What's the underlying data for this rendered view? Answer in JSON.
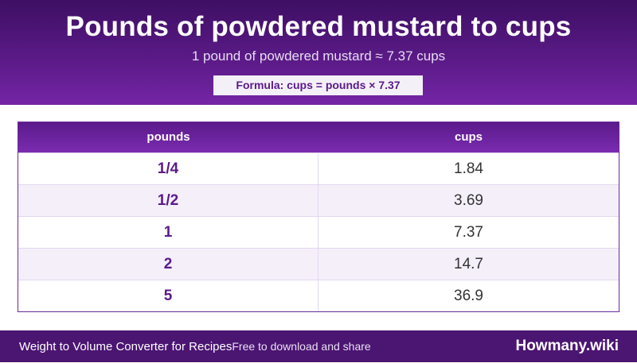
{
  "header": {
    "title": "Pounds of powdered mustard to cups",
    "subtitle": "1 pound of powdered mustard ≈ 7.37 cups",
    "formula": "Formula: cups = pounds × 7.37"
  },
  "table": {
    "columns": [
      "pounds",
      "cups"
    ],
    "rows": [
      {
        "pounds": "1/4",
        "cups": "1.84"
      },
      {
        "pounds": "1/2",
        "cups": "3.69"
      },
      {
        "pounds": "1",
        "cups": "7.37"
      },
      {
        "pounds": "2",
        "cups": "14.7"
      },
      {
        "pounds": "5",
        "cups": "36.9"
      }
    ]
  },
  "footer": {
    "left_text": "Weight to Volume Converter for Recipes",
    "tagline": "Free to download and share",
    "brand": "Howmany.wiki"
  },
  "colors": {
    "header_dark": "#3d0f63",
    "header_light": "#7425a6",
    "accent_purple": "#5b1a8a",
    "footer_bg": "#4b1572"
  }
}
